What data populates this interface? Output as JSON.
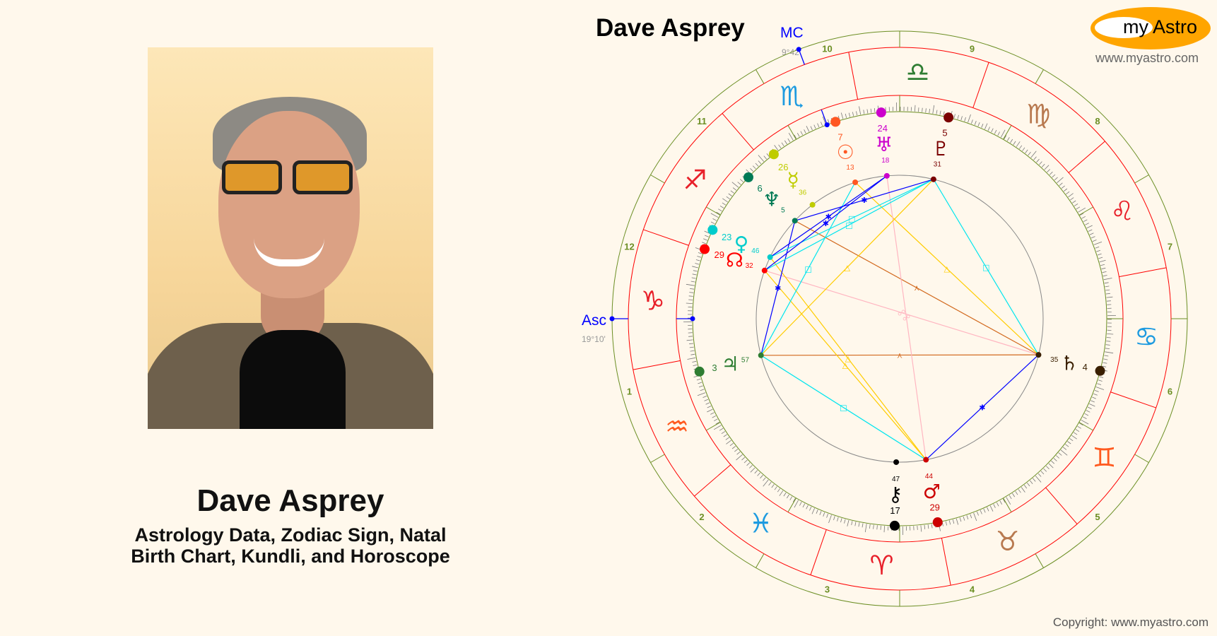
{
  "header": {
    "title": "Dave Asprey"
  },
  "logo": {
    "text_my": "my",
    "text_astro": "Astro",
    "url": "www.myastro.com",
    "color": "#ffa500"
  },
  "profile": {
    "name": "Dave Asprey",
    "subtitle_line1": "Astrology Data, Zodiac Sign, Natal",
    "subtitle_line2": "Birth Chart, Kundli, and Horoscope"
  },
  "footer": {
    "copyright": "Copyright: www.myastro.com"
  },
  "chart": {
    "house_system": "equal",
    "angles": {
      "asc": {
        "label": "Asc",
        "sign": "Capricorn",
        "degree": 19,
        "minute": 10,
        "text": "19°10'"
      },
      "mc": {
        "label": "MC",
        "sign": "Scorpio",
        "degree": 9,
        "minute": 42,
        "text": "9°42'"
      }
    },
    "signs": [
      {
        "name": "Aries",
        "glyph": "♈",
        "color": "#e8202a"
      },
      {
        "name": "Taurus",
        "glyph": "♉",
        "color": "#b8794f"
      },
      {
        "name": "Gemini",
        "glyph": "♊",
        "color": "#ff5a1f"
      },
      {
        "name": "Cancer",
        "glyph": "♋",
        "color": "#1e9be0"
      },
      {
        "name": "Leo",
        "glyph": "♌",
        "color": "#e8202a"
      },
      {
        "name": "Virgo",
        "glyph": "♍",
        "color": "#b8794f"
      },
      {
        "name": "Libra",
        "glyph": "♎",
        "color": "#2e7d32"
      },
      {
        "name": "Scorpio",
        "glyph": "♏",
        "color": "#1e9be0"
      },
      {
        "name": "Sagittarius",
        "glyph": "♐",
        "color": "#e8202a"
      },
      {
        "name": "Capricorn",
        "glyph": "♑",
        "color": "#e8202a"
      },
      {
        "name": "Aquarius",
        "glyph": "♒",
        "color": "#ff5a1f"
      },
      {
        "name": "Pisces",
        "glyph": "♓",
        "color": "#1e9be0"
      }
    ],
    "houses": [
      "1",
      "2",
      "3",
      "4",
      "5",
      "6",
      "7",
      "8",
      "9",
      "10",
      "11",
      "12"
    ],
    "planets": [
      {
        "name": "Sun",
        "glyph": "☉",
        "sign": "Scorpio",
        "degree": 7,
        "minute": 13,
        "color": "#ff5722"
      },
      {
        "name": "Uranus",
        "glyph": "♅",
        "sign": "Libra",
        "degree": 24,
        "minute": 18,
        "color": "#cc00cc"
      },
      {
        "name": "Pluto",
        "glyph": "♇",
        "sign": "Libra",
        "degree": 5,
        "minute": 31,
        "color": "#7a0000"
      },
      {
        "name": "Mercury",
        "glyph": "☿",
        "sign": "Scorpio",
        "degree": 26,
        "minute": 36,
        "color": "#bfcc00"
      },
      {
        "name": "Neptune",
        "glyph": "♆",
        "sign": "Sagittarius",
        "degree": 6,
        "minute": 5,
        "color": "#007a55"
      },
      {
        "name": "Venus",
        "glyph": "♀",
        "sign": "Sagittarius",
        "degree": 23,
        "minute": 46,
        "color": "#00cccc"
      },
      {
        "name": "Node",
        "glyph": "☊",
        "sign": "Sagittarius",
        "degree": 29,
        "minute": 32,
        "color": "#ff0000"
      },
      {
        "name": "Jupiter",
        "glyph": "♃",
        "sign": "Aquarius",
        "degree": 3,
        "minute": 57,
        "color": "#2e7d32"
      },
      {
        "name": "Chiron",
        "glyph": "⚷",
        "sign": "Aries",
        "degree": 17,
        "minute": 47,
        "color": "#000000"
      },
      {
        "name": "Mars",
        "glyph": "♂",
        "sign": "Aries",
        "degree": 29,
        "minute": 44,
        "color": "#cc0000"
      },
      {
        "name": "Saturn",
        "glyph": "♄",
        "sign": "Cancer",
        "degree": 4,
        "minute": 35,
        "color": "#3a1f00"
      }
    ],
    "aspect_types": {
      "sextile": {
        "color": "#0000ff",
        "symbol": "✱"
      },
      "square": {
        "color": "#00e5ee",
        "symbol": "□"
      },
      "trine": {
        "color": "#ffcc00",
        "symbol": "△"
      },
      "quincunx": {
        "color": "#d2691e",
        "symbol": "⋏"
      },
      "opposition": {
        "color": "#ffb6c1",
        "symbol": "☍"
      }
    },
    "aspects": [
      {
        "from": "Jupiter",
        "to": "Saturn",
        "type": "quincunx"
      },
      {
        "from": "Neptune",
        "to": "Saturn",
        "type": "quincunx"
      },
      {
        "from": "Saturn",
        "to": "Mars",
        "type": "sextile"
      },
      {
        "from": "Saturn",
        "to": "Pluto",
        "type": "square"
      },
      {
        "from": "Saturn",
        "to": "Node",
        "type": "opposition"
      },
      {
        "from": "Sun",
        "to": "Saturn",
        "type": "trine"
      },
      {
        "from": "Mars",
        "to": "Venus",
        "type": "trine"
      },
      {
        "from": "Mars",
        "to": "Node",
        "type": "trine"
      },
      {
        "from": "Mars",
        "to": "Uranus",
        "type": "opposition"
      },
      {
        "from": "Jupiter",
        "to": "Mars",
        "type": "square"
      },
      {
        "from": "Jupiter",
        "to": "Sun",
        "type": "square"
      },
      {
        "from": "Jupiter",
        "to": "Pluto",
        "type": "trine"
      },
      {
        "from": "Jupiter",
        "to": "Neptune",
        "type": "sextile"
      },
      {
        "from": "Node",
        "to": "Pluto",
        "type": "square"
      },
      {
        "from": "Venus",
        "to": "Pluto",
        "type": "square"
      },
      {
        "from": "Neptune",
        "to": "Pluto",
        "type": "sextile"
      },
      {
        "from": "Venus",
        "to": "Uranus",
        "type": "sextile"
      },
      {
        "from": "Node",
        "to": "Uranus",
        "type": "sextile"
      }
    ]
  }
}
